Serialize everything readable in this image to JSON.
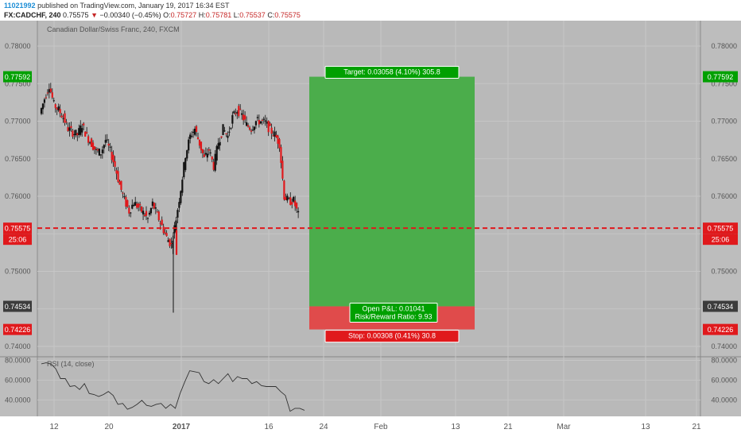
{
  "header": {
    "id": "11021992",
    "published": "published on TradingView.com, January 19, 2017 16:34 EST",
    "symbol": "FX:CADCHF, 240",
    "last": "0.75575",
    "change": "−0.00340 (−0.45%)",
    "o_label": "O:",
    "o": "0.75727",
    "h_label": "H:",
    "h": "0.75781",
    "l_label": "L:",
    "l": "0.75537",
    "c_label": "C:",
    "c": "0.75575"
  },
  "chart_data": {
    "type": "candlestick",
    "title": "Canadian Dollar/Swiss Franc, 240, FXCM",
    "y_ticks": [
      "0.78000",
      "0.77500",
      "0.77000",
      "0.76500",
      "0.76000",
      "0.75500",
      "0.75000",
      "0.74500",
      "0.74000"
    ],
    "ylim": [
      0.7386,
      0.7818
    ],
    "x_ticks": [
      "12",
      "20",
      "2017",
      "16",
      "24",
      "Feb",
      "13",
      "21",
      "Mar",
      "13",
      "21"
    ],
    "price_tags": [
      {
        "value": "0.77592",
        "color": "#00a000"
      },
      {
        "value": "0.75575",
        "color": "#e0191c",
        "sub": "25:06"
      },
      {
        "value": "0.74534",
        "color": "#3c3c3c"
      },
      {
        "value": "0.74226",
        "color": "#e0191c"
      }
    ],
    "current_price": 0.75575,
    "position": {
      "target_label": "Target: 0.03058 (4.10%) 305.8",
      "stop_label": "Stop: 0.00308 (0.41%) 30.8",
      "pnl_label": "Open P&L: 0.01041",
      "rr_label": "Risk/Reward Ratio: 9.93",
      "entry": 0.74534,
      "target": 0.77592,
      "stop": 0.74226
    },
    "price_path": [
      [
        0,
        0.771
      ],
      [
        2,
        0.773
      ],
      [
        4,
        0.7748
      ],
      [
        6,
        0.7722
      ],
      [
        8,
        0.7715
      ],
      [
        10,
        0.7705
      ],
      [
        12,
        0.769
      ],
      [
        14,
        0.7685
      ],
      [
        16,
        0.7682
      ],
      [
        18,
        0.7695
      ],
      [
        20,
        0.768
      ],
      [
        22,
        0.767
      ],
      [
        24,
        0.766
      ],
      [
        26,
        0.7658
      ],
      [
        28,
        0.7675
      ],
      [
        30,
        0.766
      ],
      [
        32,
        0.764
      ],
      [
        34,
        0.7615
      ],
      [
        36,
        0.7595
      ],
      [
        38,
        0.758
      ],
      [
        40,
        0.7592
      ],
      [
        42,
        0.7585
      ],
      [
        44,
        0.7578
      ],
      [
        46,
        0.757
      ],
      [
        48,
        0.759
      ],
      [
        50,
        0.7575
      ],
      [
        52,
        0.756
      ],
      [
        54,
        0.7545
      ],
      [
        56,
        0.7535
      ],
      [
        58,
        0.757
      ],
      [
        60,
        0.761
      ],
      [
        62,
        0.7655
      ],
      [
        64,
        0.768
      ],
      [
        66,
        0.769
      ],
      [
        68,
        0.767
      ],
      [
        70,
        0.765
      ],
      [
        72,
        0.7662
      ],
      [
        74,
        0.764
      ],
      [
        76,
        0.7672
      ],
      [
        78,
        0.769
      ],
      [
        80,
        0.768
      ],
      [
        82,
        0.7705
      ],
      [
        84,
        0.7715
      ],
      [
        86,
        0.7708
      ],
      [
        88,
        0.7695
      ],
      [
        90,
        0.769
      ],
      [
        92,
        0.77
      ],
      [
        94,
        0.77
      ],
      [
        96,
        0.7698
      ],
      [
        98,
        0.7688
      ],
      [
        100,
        0.7682
      ],
      [
        102,
        0.767
      ],
      [
        104,
        0.76
      ],
      [
        106,
        0.7593
      ],
      [
        108,
        0.7594
      ],
      [
        110,
        0.7575
      ]
    ],
    "indicator": {
      "label": "RSI (14, close)",
      "y_ticks": [
        "80.0000",
        "60.0000",
        "40.0000"
      ],
      "ylim": [
        25,
        82
      ],
      "values": [
        [
          0,
          78
        ],
        [
          2,
          76
        ],
        [
          4,
          78
        ],
        [
          6,
          70
        ],
        [
          8,
          63
        ],
        [
          10,
          60
        ],
        [
          12,
          55
        ],
        [
          14,
          53
        ],
        [
          16,
          52
        ],
        [
          18,
          55
        ],
        [
          20,
          48
        ],
        [
          22,
          44
        ],
        [
          24,
          45
        ],
        [
          26,
          44
        ],
        [
          28,
          50
        ],
        [
          30,
          43
        ],
        [
          32,
          37
        ],
        [
          34,
          35
        ],
        [
          36,
          32
        ],
        [
          38,
          31
        ],
        [
          40,
          37
        ],
        [
          42,
          38
        ],
        [
          44,
          36
        ],
        [
          46,
          32
        ],
        [
          48,
          37
        ],
        [
          50,
          35
        ],
        [
          52,
          33
        ],
        [
          54,
          34
        ],
        [
          56,
          33
        ],
        [
          58,
          45
        ],
        [
          60,
          60
        ],
        [
          62,
          68
        ],
        [
          64,
          70
        ],
        [
          66,
          66
        ],
        [
          68,
          60
        ],
        [
          70,
          55
        ],
        [
          72,
          62
        ],
        [
          74,
          55
        ],
        [
          76,
          63
        ],
        [
          78,
          65
        ],
        [
          80,
          60
        ],
        [
          82,
          62
        ],
        [
          84,
          63
        ],
        [
          86,
          60
        ],
        [
          88,
          58
        ],
        [
          90,
          57
        ],
        [
          92,
          56
        ],
        [
          94,
          52
        ],
        [
          96,
          55
        ],
        [
          98,
          52
        ],
        [
          100,
          50
        ],
        [
          102,
          43
        ],
        [
          104,
          30
        ],
        [
          106,
          30
        ],
        [
          108,
          33
        ],
        [
          110,
          28
        ]
      ]
    }
  }
}
